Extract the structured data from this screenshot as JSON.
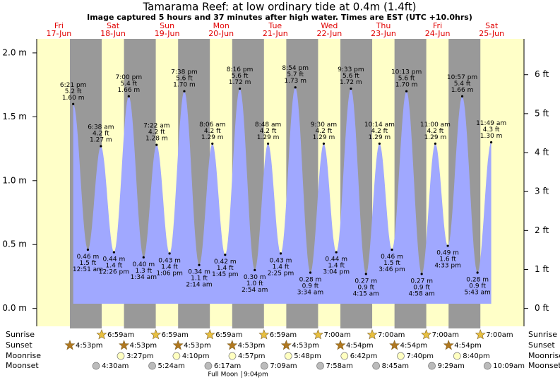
{
  "chart_data": {
    "type": "tide",
    "title": "Tamarama Reef: at low  ordinary tide at 0.4m (1.4ft)",
    "subtitle": "Image captured 5 hours and 37 minutes after high water. Times are EST (UTC +10.0hrs)",
    "ylim": [
      -0.14,
      2.11
    ],
    "yticks": [
      {
        "value": 0,
        "label": "0.0 m"
      },
      {
        "value": 0.5,
        "label": "0.5 m"
      },
      {
        "value": 1,
        "label": "1.0 m"
      },
      {
        "value": 1.5,
        "label": "1.5 m"
      },
      {
        "value": 2,
        "label": "2.0 m"
      }
    ],
    "y2lim": [
      -0.46,
      6.92
    ],
    "y2ticks": [
      {
        "value": 0,
        "label": "0 ft"
      },
      {
        "value": 1,
        "label": "1 ft"
      },
      {
        "value": 2,
        "label": "2 ft"
      },
      {
        "value": 3,
        "label": "3 ft"
      },
      {
        "value": 4,
        "label": "4 ft"
      },
      {
        "value": 5,
        "label": "5 ft"
      },
      {
        "value": 6,
        "label": "6 ft"
      }
    ],
    "color": "#a0a8ff",
    "row_labels": [
      "Sunrise",
      "Sunset",
      "Moonrise",
      "Moonset"
    ],
    "full_moon_label": "Full Moon",
    "days": [
      {
        "day": "Fri",
        "date": "17-Jun",
        "sunset": "4:53pm",
        "tides": [
          {
            "time": "6:21 pm",
            "value": 1.6,
            "value_label": "1.60 m",
            "ft": "5.2 ft"
          }
        ]
      },
      {
        "day": "Sat",
        "date": "18-Jun",
        "sunrise": "6:59am",
        "sunset": "4:53pm",
        "moonrise": "3:27pm",
        "moonset": "4:30am",
        "tides": [
          {
            "time": "12:51 am",
            "value": 0.46,
            "value_label": "0.46 m",
            "ft": "1.5 ft"
          },
          {
            "time": "6:38 am",
            "value": 1.27,
            "value_label": "1.27 m",
            "ft": "4.2 ft"
          },
          {
            "time": "12:26 pm",
            "value": 0.44,
            "value_label": "0.44 m",
            "ft": "1.4 ft"
          },
          {
            "time": "7:00 pm",
            "value": 1.66,
            "value_label": "1.66 m",
            "ft": "5.4 ft"
          }
        ]
      },
      {
        "day": "Sun",
        "date": "19-Jun",
        "sunrise": "6:59am",
        "sunset": "4:53pm",
        "moonrise": "4:10pm",
        "moonset": "5:24am",
        "tides": [
          {
            "time": "1:34 am",
            "value": 0.4,
            "value_label": "0.40 m",
            "ft": "1.3 ft"
          },
          {
            "time": "7:22 am",
            "value": 1.28,
            "value_label": "1.28 m",
            "ft": "4.2 ft"
          },
          {
            "time": "1:06 pm",
            "value": 0.43,
            "value_label": "0.43 m",
            "ft": "1.4 ft"
          },
          {
            "time": "7:38 pm",
            "value": 1.7,
            "value_label": "1.70 m",
            "ft": "5.6 ft"
          }
        ]
      },
      {
        "day": "Mon",
        "date": "20-Jun",
        "sunrise": "6:59am",
        "sunset": "4:53pm",
        "moonrise": "4:57pm",
        "moonset": "6:17am",
        "full_moon": "9:04pm",
        "tides": [
          {
            "time": "2:14 am",
            "value": 0.34,
            "value_label": "0.34 m",
            "ft": "1.1 ft"
          },
          {
            "time": "8:06 am",
            "value": 1.29,
            "value_label": "1.29 m",
            "ft": "4.2 ft"
          },
          {
            "time": "1:45 pm",
            "value": 0.42,
            "value_label": "0.42 m",
            "ft": "1.4 ft"
          },
          {
            "time": "8:16 pm",
            "value": 1.72,
            "value_label": "1.72 m",
            "ft": "5.6 ft"
          }
        ]
      },
      {
        "day": "Tue",
        "date": "21-Jun",
        "sunrise": "6:59am",
        "sunset": "4:53pm",
        "moonrise": "5:48pm",
        "moonset": "7:09am",
        "tides": [
          {
            "time": "2:54 am",
            "value": 0.3,
            "value_label": "0.30 m",
            "ft": "1.0 ft"
          },
          {
            "time": "8:48 am",
            "value": 1.29,
            "value_label": "1.29 m",
            "ft": "4.2 ft"
          },
          {
            "time": "2:25 pm",
            "value": 0.43,
            "value_label": "0.43 m",
            "ft": "1.4 ft"
          },
          {
            "time": "8:54 pm",
            "value": 1.73,
            "value_label": "1.73 m",
            "ft": "5.7 ft"
          }
        ]
      },
      {
        "day": "Wed",
        "date": "22-Jun",
        "sunrise": "7:00am",
        "sunset": "4:54pm",
        "moonrise": "6:42pm",
        "moonset": "7:58am",
        "tides": [
          {
            "time": "3:34 am",
            "value": 0.28,
            "value_label": "0.28 m",
            "ft": "0.9 ft"
          },
          {
            "time": "9:30 am",
            "value": 1.29,
            "value_label": "1.29 m",
            "ft": "4.2 ft"
          },
          {
            "time": "3:04 pm",
            "value": 0.44,
            "value_label": "0.44 m",
            "ft": "1.4 ft"
          },
          {
            "time": "9:33 pm",
            "value": 1.72,
            "value_label": "1.72 m",
            "ft": "5.6 ft"
          }
        ]
      },
      {
        "day": "Thu",
        "date": "23-Jun",
        "sunrise": "7:00am",
        "sunset": "4:54pm",
        "moonrise": "7:40pm",
        "moonset": "8:45am",
        "tides": [
          {
            "time": "4:15 am",
            "value": 0.27,
            "value_label": "0.27 m",
            "ft": "0.9 ft"
          },
          {
            "time": "10:14 am",
            "value": 1.29,
            "value_label": "1.29 m",
            "ft": "4.2 ft"
          },
          {
            "time": "3:46 pm",
            "value": 0.46,
            "value_label": "0.46 m",
            "ft": "1.5 ft"
          },
          {
            "time": "10:13 pm",
            "value": 1.7,
            "value_label": "1.70 m",
            "ft": "5.6 ft"
          }
        ]
      },
      {
        "day": "Fri",
        "date": "24-Jun",
        "sunrise": "7:00am",
        "sunset": "4:54pm",
        "moonrise": "8:40pm",
        "moonset": "9:29am",
        "tides": [
          {
            "time": "4:58 am",
            "value": 0.27,
            "value_label": "0.27 m",
            "ft": "0.9 ft"
          },
          {
            "time": "11:00 am",
            "value": 1.29,
            "value_label": "1.29 m",
            "ft": "4.2 ft"
          },
          {
            "time": "4:33 pm",
            "value": 0.49,
            "value_label": "0.49 m",
            "ft": "1.6 ft"
          },
          {
            "time": "10:57 pm",
            "value": 1.66,
            "value_label": "1.66 m",
            "ft": "5.4 ft"
          }
        ]
      },
      {
        "day": "Sat",
        "date": "25-Jun",
        "sunrise": "7:00am",
        "moonset": "10:09am",
        "tides": [
          {
            "time": "5:43 am",
            "value": 0.28,
            "value_label": "0.28 m",
            "ft": "0.9 ft"
          },
          {
            "time": "11:49 am",
            "value": 1.3,
            "value_label": "1.30 m",
            "ft": "4.3 ft"
          }
        ]
      }
    ]
  }
}
